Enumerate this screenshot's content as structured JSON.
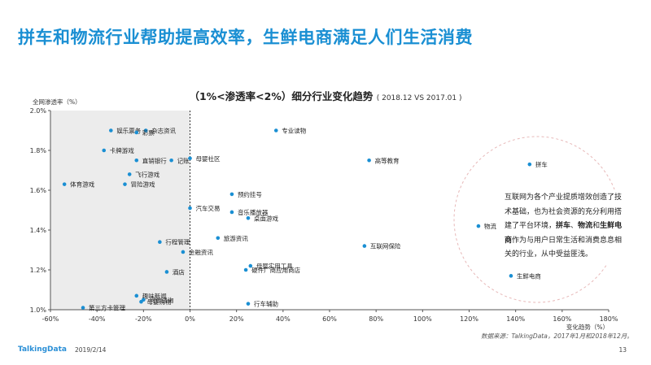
{
  "page": {
    "title": "拼车和物流行业帮助提高效率，生鲜电商满足人们生活消费",
    "footer_logo": "TalkingData",
    "footer_date": "2019/2/14",
    "page_number": "13",
    "source": "数据来源：TalkingData，2017年1月和2018年12月。"
  },
  "note": {
    "part1": "互联网为各个产业提质增效创造了技术基础，也为社会资源的充分利用搭建了平台环境，",
    "bold1": "拼车",
    "sep1": "、",
    "bold2": "物流",
    "mid": "和",
    "bold3": "生鲜电商",
    "part2": "作为与用户日常生活和消费息息相关的行业，从中受益匪浅。"
  },
  "chart_data": {
    "type": "scatter",
    "title": "（1%<渗透率<2%）细分行业变化趋势",
    "subtitle": "( 2018.12 VS 2017.01 )",
    "xlabel": "变化趋势（%）",
    "ylabel": "全网渗透率（%）",
    "xlim": [
      -60,
      180
    ],
    "ylim": [
      1.0,
      2.0
    ],
    "x_ticks": [
      "-60%",
      "-40%",
      "-20%",
      "0%",
      "20%",
      "40%",
      "60%",
      "80%",
      "100%",
      "120%",
      "140%",
      "160%",
      "180%"
    ],
    "y_ticks": [
      "1.0%",
      "1.2%",
      "1.4%",
      "1.6%",
      "1.8%",
      "2.0%"
    ],
    "grid": false,
    "shaded_region": "x < 0",
    "highlight": [
      "拼车",
      "物流",
      "生鲜电商"
    ],
    "point_color": "#1a8fd3",
    "points": [
      {
        "label": "娱乐票务",
        "x": -34,
        "y": 1.9
      },
      {
        "label": "杂志资讯",
        "x": -19,
        "y": 1.9
      },
      {
        "label": "彩票",
        "x": -23,
        "y": 1.89
      },
      {
        "label": "卡牌游戏",
        "x": -37,
        "y": 1.8
      },
      {
        "label": "直销银行",
        "x": -23,
        "y": 1.75
      },
      {
        "label": "记账",
        "x": -8,
        "y": 1.75
      },
      {
        "label": "母婴社区",
        "x": 0,
        "y": 1.76
      },
      {
        "label": "飞行游戏",
        "x": -26,
        "y": 1.68
      },
      {
        "label": "体育游戏",
        "x": -54,
        "y": 1.63
      },
      {
        "label": "冒险游戏",
        "x": -28,
        "y": 1.63
      },
      {
        "label": "专业读物",
        "x": 37,
        "y": 1.9
      },
      {
        "label": "高等教育",
        "x": 77,
        "y": 1.75
      },
      {
        "label": "拼车",
        "x": 146,
        "y": 1.73
      },
      {
        "label": "预约挂号",
        "x": 18,
        "y": 1.58
      },
      {
        "label": "汽车交易",
        "x": 0,
        "y": 1.51
      },
      {
        "label": "音乐播放器",
        "x": 18,
        "y": 1.49
      },
      {
        "label": "桌面游戏",
        "x": 25,
        "y": 1.46
      },
      {
        "label": "物流",
        "x": 124,
        "y": 1.42
      },
      {
        "label": "旅游资讯",
        "x": 12,
        "y": 1.36
      },
      {
        "label": "行程管理",
        "x": -13,
        "y": 1.34
      },
      {
        "label": "互联网保险",
        "x": 75,
        "y": 1.32
      },
      {
        "label": "金融资讯",
        "x": -3,
        "y": 1.29
      },
      {
        "label": "母婴实用工具",
        "x": 26,
        "y": 1.22
      },
      {
        "label": "硬件厂商应用商店",
        "x": 24,
        "y": 1.2
      },
      {
        "label": "酒店",
        "x": -10,
        "y": 1.19
      },
      {
        "label": "生鲜电商",
        "x": 138,
        "y": 1.17
      },
      {
        "label": "趣味新闻",
        "x": -23,
        "y": 1.07
      },
      {
        "label": "问诊咨询",
        "x": -20,
        "y": 1.05
      },
      {
        "label": "母婴购物",
        "x": -21,
        "y": 1.04
      },
      {
        "label": "行车辅助",
        "x": 25,
        "y": 1.03
      },
      {
        "label": "第三方卡管理",
        "x": -46,
        "y": 1.01
      }
    ]
  }
}
